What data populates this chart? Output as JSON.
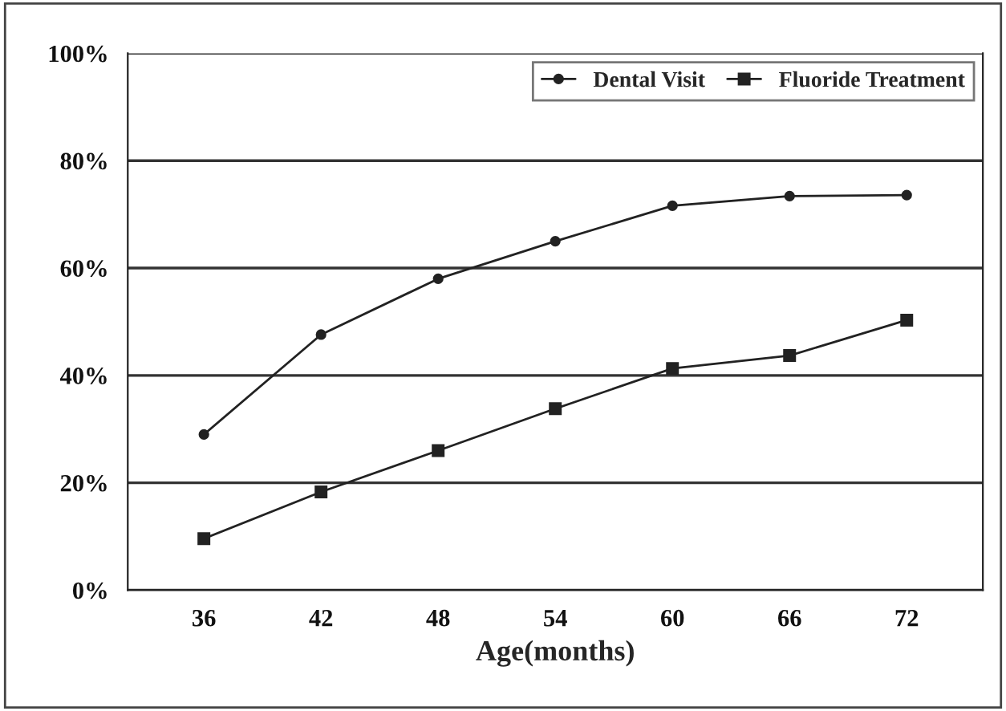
{
  "chart_data": {
    "type": "line",
    "xlabel": "Age(months)",
    "categories": [
      "36",
      "42",
      "48",
      "54",
      "60",
      "66",
      "72"
    ],
    "series": [
      {
        "name": "Dental Visit",
        "color": "#222222",
        "marker": "circle",
        "values": [
          29,
          47.6,
          58,
          65,
          71.6,
          73.4,
          73.6
        ]
      },
      {
        "name": "Fluoride Treatment",
        "color": "#222222",
        "marker": "square",
        "values": [
          9.6,
          18.3,
          26,
          33.8,
          41.3,
          43.7,
          50.3
        ]
      }
    ],
    "ylim": [
      0,
      100
    ],
    "yticks": [
      {
        "value": 0,
        "label": "0%"
      },
      {
        "value": 20,
        "label": "20%"
      },
      {
        "value": 40,
        "label": "40%"
      },
      {
        "value": 60,
        "label": "60%"
      },
      {
        "value": 80,
        "label": "80%"
      },
      {
        "value": 100,
        "label": "100%"
      }
    ],
    "grid": "y",
    "legend": "top right",
    "line_style": "solid"
  }
}
